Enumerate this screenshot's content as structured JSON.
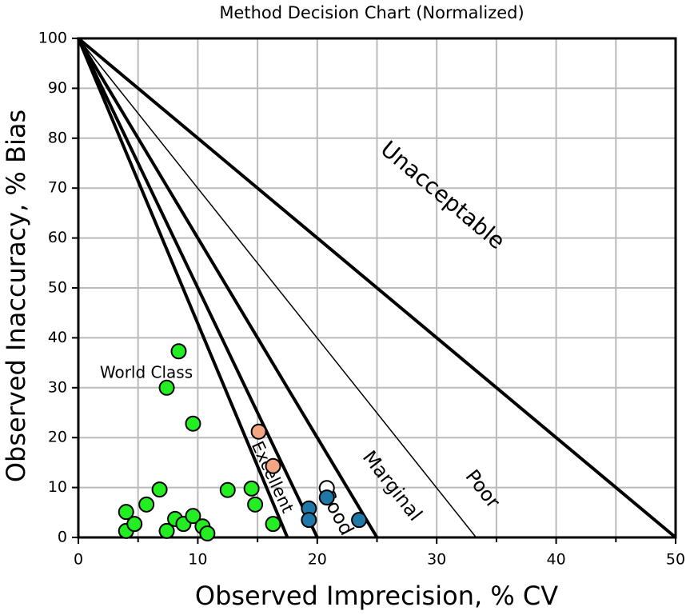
{
  "chart_data": {
    "type": "scatter",
    "title": "Method Decision Chart (Normalized)",
    "xlabel": "Observed Imprecision, % CV",
    "ylabel": "Observed Inaccuracy, % Bias",
    "xlim": [
      0,
      50
    ],
    "ylim": [
      0,
      100
    ],
    "xticks": [
      0,
      10,
      20,
      30,
      40,
      50
    ],
    "xminor_ticks": [
      5,
      15,
      25,
      35,
      45
    ],
    "yticks": [
      0,
      10,
      20,
      30,
      40,
      50,
      60,
      70,
      80,
      90,
      100
    ],
    "grid": true,
    "decision_lines": {
      "x_intercepts": [
        17.5,
        20,
        25,
        33.3,
        50
      ],
      "thick": [
        true,
        true,
        true,
        false,
        true
      ]
    },
    "annotations": [
      "World Class",
      "Excellent",
      "Good",
      "Marginal",
      "Poor",
      "Unacceptable"
    ],
    "series": [
      {
        "color": "#22ee22",
        "x": [
          4.0,
          4.0,
          4.7,
          5.7,
          6.8,
          7.4,
          8.4,
          7.4,
          8.1,
          8.8,
          9.6,
          9.6,
          10.4,
          10.8,
          12.5,
          14.5,
          14.8,
          16.3
        ],
        "values": [
          5.1,
          1.3,
          2.7,
          6.6,
          9.6,
          30.0,
          37.3,
          1.3,
          3.7,
          2.7,
          4.3,
          22.8,
          2.2,
          0.8,
          9.5,
          9.8,
          6.6,
          2.7
        ]
      },
      {
        "color": "#f4a582",
        "x": [
          15.1,
          16.3
        ],
        "values": [
          21.2,
          14.3
        ]
      },
      {
        "color": "#ffffff",
        "x": [
          20.8
        ],
        "values": [
          9.9
        ]
      },
      {
        "color": "#1f78a8",
        "x": [
          19.3,
          19.3,
          20.8,
          23.5
        ],
        "values": [
          5.8,
          3.5,
          8.0,
          3.5
        ]
      }
    ]
  }
}
